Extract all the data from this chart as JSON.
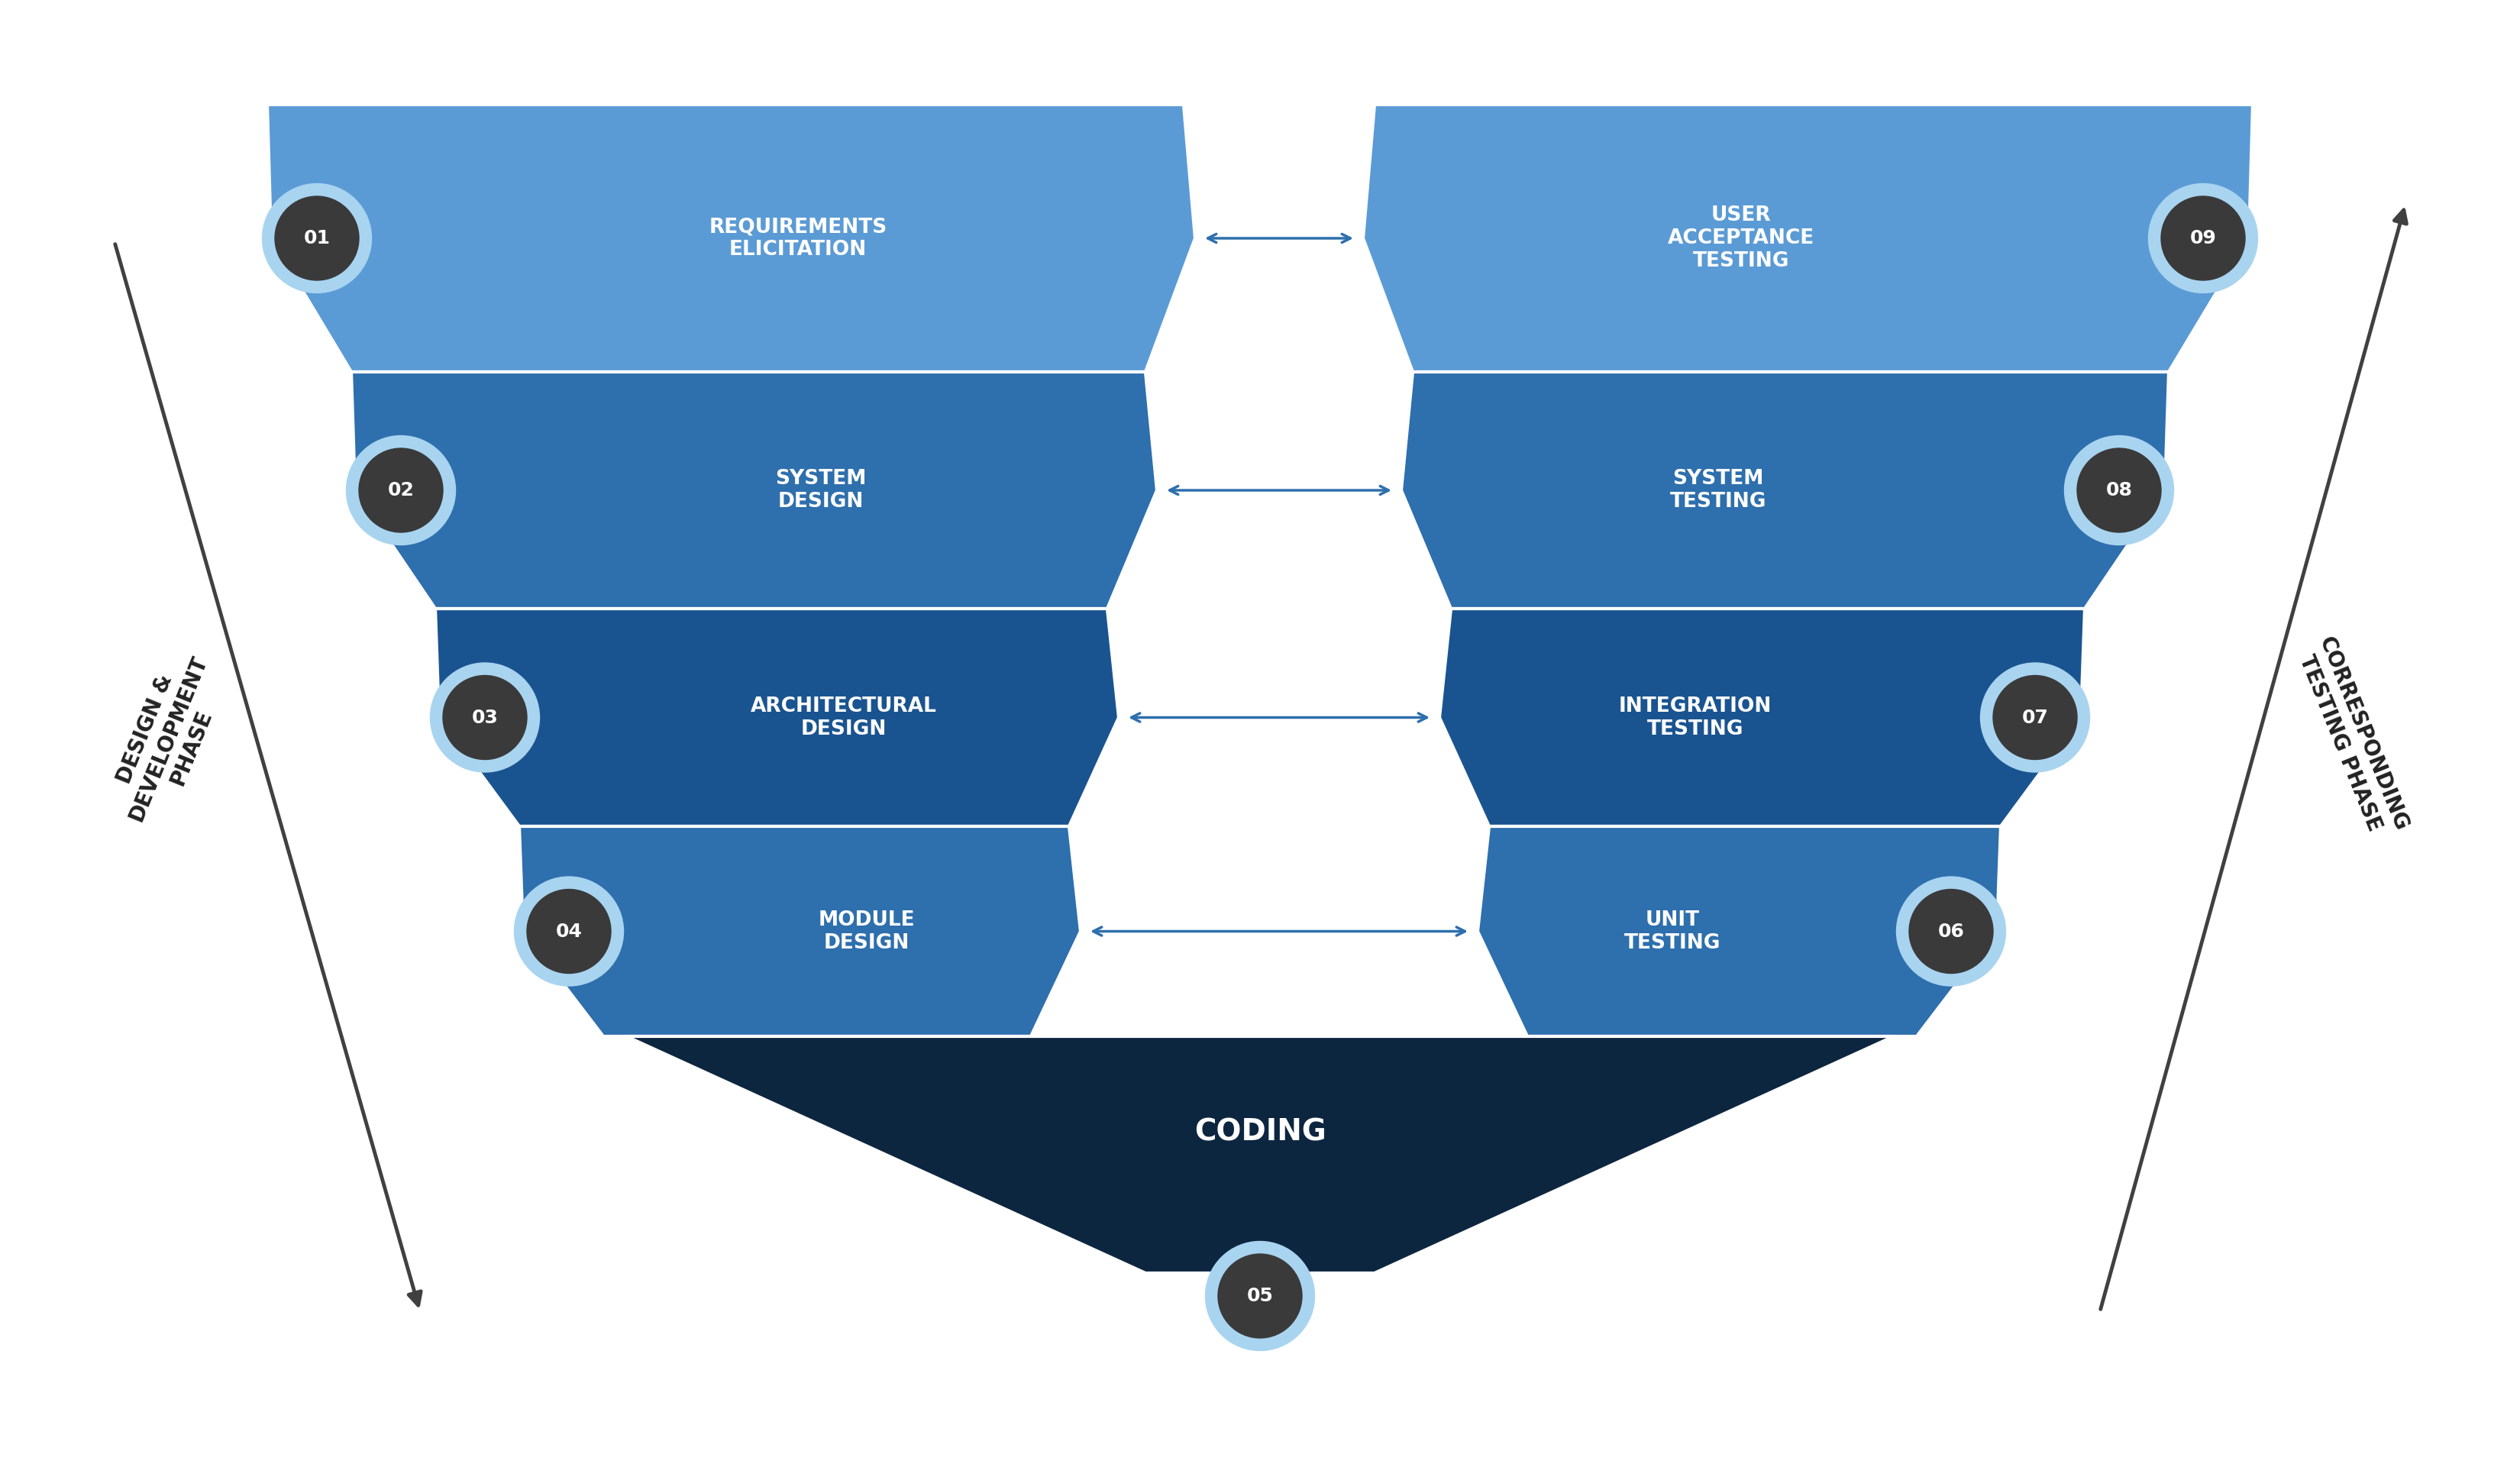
{
  "background_color": "#ffffff",
  "left_labels": [
    "REQUIREMENTS\nELICITATION",
    "SYSTEM\nDESIGN",
    "ARCHITECTURAL\nDESIGN",
    "MODULE\nDESIGN"
  ],
  "right_labels": [
    "USER\nACCEPTANCE\nTESTING",
    "SYSTEM\nTESTING",
    "INTEGRATION\nTESTING",
    "UNIT\nTESTING"
  ],
  "left_nums": [
    "01",
    "02",
    "03",
    "04"
  ],
  "right_nums": [
    "09",
    "08",
    "07",
    "06"
  ],
  "coding_label": "CODING",
  "coding_num": "05",
  "left_colors": [
    "#5b9bd5",
    "#2e6fad",
    "#1a5490",
    "#2e6fad"
  ],
  "right_colors": [
    "#5b9bd5",
    "#2e6fad",
    "#1a5490",
    "#2e6fad"
  ],
  "coding_color": "#0d2640",
  "circle_ring_color": "#a8d4f0",
  "circle_fill_color": "#3a3a3a",
  "arrow_color": "#2e6fad",
  "side_arrow_color": "#404040",
  "left_phase_label": "DESIGN & DEVELOPMENT PHASE",
  "right_phase_label": "CORRESPONDING TESTING PHASE",
  "text_color": "#ffffff",
  "label_color": "#222222"
}
